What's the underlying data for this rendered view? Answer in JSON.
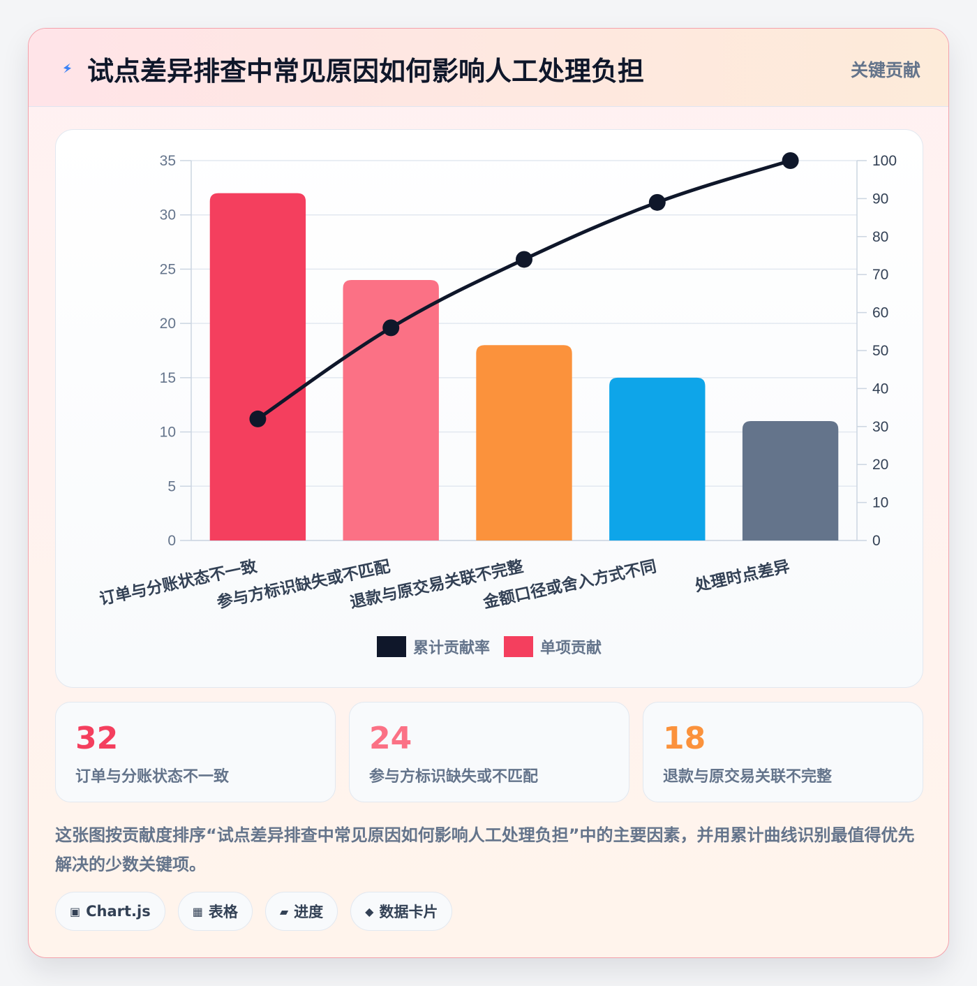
{
  "header": {
    "title": "试点差异排查中常见原因如何影响人工处理负担",
    "tag": "关键贡献",
    "icon": "lightning-icon"
  },
  "chart_data": {
    "type": "bar",
    "title": "",
    "categories": [
      "订单与分账状态不一致",
      "参与方标识缺失或不匹配",
      "退款与原交易关联不完整",
      "金额口径或舍入方式不同",
      "处理时点差异"
    ],
    "series": [
      {
        "name": "单项贡献",
        "type": "bar",
        "axis": "left",
        "values": [
          32,
          24,
          18,
          15,
          11
        ],
        "colors": [
          "#f43f5e",
          "#fb7185",
          "#fb923c",
          "#0ea5e9",
          "#64748b"
        ]
      },
      {
        "name": "累计贡献率",
        "type": "line",
        "axis": "right",
        "values": [
          32,
          56,
          74,
          89,
          100
        ],
        "color": "#0f172a"
      }
    ],
    "ylim_left": [
      0,
      35
    ],
    "ylim_right": [
      0,
      100
    ],
    "yticks_left": [
      "0",
      "5",
      "10",
      "15",
      "20",
      "25",
      "30",
      "35"
    ],
    "yticks_right": [
      "0",
      "10",
      "20",
      "30",
      "40",
      "50",
      "60",
      "70",
      "80",
      "90",
      "100"
    ],
    "xlabel": "",
    "ylabel": "",
    "grid": true,
    "legend_position": "bottom",
    "legend": [
      {
        "label": "累计贡献率",
        "color": "#0f172a"
      },
      {
        "label": "单项贡献",
        "color": "#f43f5e"
      }
    ]
  },
  "kpis": [
    {
      "value": "32",
      "label": "订单与分账状态不一致",
      "color": "#f43f5e"
    },
    {
      "value": "24",
      "label": "参与方标识缺失或不匹配",
      "color": "#fb7185"
    },
    {
      "value": "18",
      "label": "退款与原交易关联不完整",
      "color": "#fb923c"
    }
  ],
  "description": "这张图按贡献度排序“试点差异排查中常见原因如何影响人工处理负担”中的主要因素，并用累计曲线识别最值得优先解决的少数关键项。",
  "chips": [
    {
      "icon": "▣",
      "icon_name": "chart-icon",
      "label": "Chart.js"
    },
    {
      "icon": "▦",
      "icon_name": "table-icon",
      "label": "表格"
    },
    {
      "icon": "▰",
      "icon_name": "progress-icon",
      "label": "进度"
    },
    {
      "icon": "◆",
      "icon_name": "card-icon",
      "label": "数据卡片"
    }
  ]
}
